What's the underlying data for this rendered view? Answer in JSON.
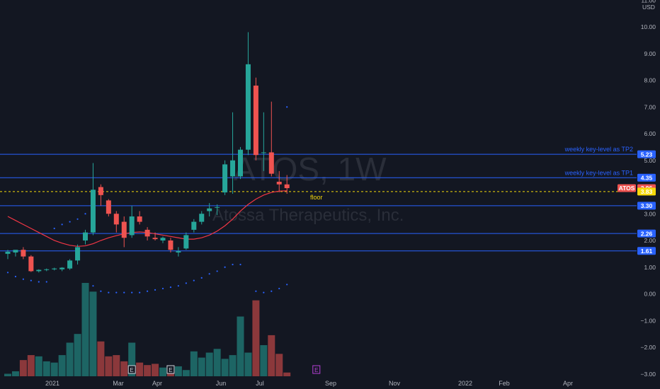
{
  "chart_data": {
    "type": "candlestick",
    "symbol": "ATOS",
    "interval": "1W",
    "company": "Atossa Therapeutics, Inc.",
    "currency": "USD",
    "price_axis": {
      "ticks": [
        "−3.00",
        "−2.00",
        "−1.00",
        "0.00",
        "1.00",
        "2.00",
        "3.00",
        "4.00",
        "5.00",
        "6.00",
        "7.00",
        "8.00",
        "9.00",
        "10.00",
        "11.00"
      ]
    },
    "time_axis": {
      "ticks": [
        "2021",
        "Mar",
        "Apr",
        "Jun",
        "Jul",
        "Sep",
        "Nov",
        "2022",
        "Feb",
        "Apr"
      ]
    },
    "candles": [
      {
        "o": 1.5,
        "h": 1.65,
        "l": 1.3,
        "c": 1.58
      },
      {
        "o": 1.55,
        "h": 1.62,
        "l": 1.4,
        "c": 1.65
      },
      {
        "o": 1.65,
        "h": 1.75,
        "l": 1.3,
        "c": 1.4
      },
      {
        "o": 1.4,
        "h": 1.45,
        "l": 0.82,
        "c": 0.85
      },
      {
        "o": 0.85,
        "h": 0.92,
        "l": 0.8,
        "c": 0.9
      },
      {
        "o": 0.9,
        "h": 0.95,
        "l": 0.85,
        "c": 0.92
      },
      {
        "o": 0.92,
        "h": 0.98,
        "l": 0.88,
        "c": 0.95
      },
      {
        "o": 0.92,
        "h": 1.0,
        "l": 0.85,
        "c": 0.98
      },
      {
        "o": 0.95,
        "h": 1.3,
        "l": 0.9,
        "c": 1.25
      },
      {
        "o": 1.25,
        "h": 1.85,
        "l": 1.1,
        "c": 1.75
      },
      {
        "o": 2.0,
        "h": 2.4,
        "l": 1.85,
        "c": 2.3
      },
      {
        "o": 2.3,
        "h": 4.9,
        "l": 2.2,
        "c": 3.9
      },
      {
        "o": 4.0,
        "h": 4.1,
        "l": 3.3,
        "c": 3.7
      },
      {
        "o": 3.5,
        "h": 3.55,
        "l": 2.9,
        "c": 3.0
      },
      {
        "o": 3.0,
        "h": 3.1,
        "l": 2.3,
        "c": 2.6
      },
      {
        "o": 2.7,
        "h": 2.9,
        "l": 1.75,
        "c": 2.1
      },
      {
        "o": 2.2,
        "h": 3.3,
        "l": 2.1,
        "c": 2.9
      },
      {
        "o": 2.9,
        "h": 3.1,
        "l": 2.6,
        "c": 2.7
      },
      {
        "o": 2.4,
        "h": 2.5,
        "l": 2.0,
        "c": 2.15
      },
      {
        "o": 2.1,
        "h": 2.3,
        "l": 2.0,
        "c": 2.05
      },
      {
        "o": 2.0,
        "h": 2.15,
        "l": 1.9,
        "c": 2.1
      },
      {
        "o": 2.0,
        "h": 2.1,
        "l": 1.55,
        "c": 1.65
      },
      {
        "o": 1.55,
        "h": 1.75,
        "l": 1.4,
        "c": 1.6
      },
      {
        "o": 1.7,
        "h": 2.3,
        "l": 1.65,
        "c": 2.2
      },
      {
        "o": 2.4,
        "h": 2.8,
        "l": 2.3,
        "c": 2.7
      },
      {
        "o": 2.7,
        "h": 3.1,
        "l": 2.6,
        "c": 3.0
      },
      {
        "o": 3.1,
        "h": 3.4,
        "l": 2.9,
        "c": 3.2
      },
      {
        "o": 3.25,
        "h": 3.35,
        "l": 2.95,
        "c": 3.25
      },
      {
        "o": 3.8,
        "h": 5.0,
        "l": 3.7,
        "c": 4.85
      },
      {
        "o": 4.4,
        "h": 6.8,
        "l": 3.75,
        "c": 5.0
      },
      {
        "o": 4.4,
        "h": 5.5,
        "l": 4.3,
        "c": 5.4
      },
      {
        "o": 5.4,
        "h": 9.8,
        "l": 5.2,
        "c": 8.6
      },
      {
        "o": 7.8,
        "h": 8.1,
        "l": 5.0,
        "c": 5.2
      },
      {
        "o": 5.3,
        "h": 6.8,
        "l": 4.6,
        "c": 5.3
      },
      {
        "o": 5.3,
        "h": 7.2,
        "l": 4.4,
        "c": 4.5
      },
      {
        "o": 4.2,
        "h": 4.6,
        "l": 3.8,
        "c": 4.1
      },
      {
        "o": 4.1,
        "h": 4.45,
        "l": 3.75,
        "c": 3.96
      }
    ],
    "volume_rel": [
      0.02,
      0.04,
      0.13,
      0.17,
      0.16,
      0.12,
      0.11,
      0.17,
      0.27,
      0.34,
      0.75,
      0.68,
      0.28,
      0.16,
      0.17,
      0.12,
      0.27,
      0.11,
      0.09,
      0.1,
      0.07,
      0.08,
      0.08,
      0.05,
      0.2,
      0.15,
      0.19,
      0.22,
      0.14,
      0.17,
      0.48,
      0.19,
      0.61,
      0.25,
      0.33,
      0.18,
      0.03
    ],
    "ma_line": [
      2.9,
      2.75,
      2.6,
      2.45,
      2.3,
      2.15,
      2.0,
      1.9,
      1.82,
      1.78,
      1.8,
      1.88,
      2.0,
      2.1,
      2.18,
      2.25,
      2.3,
      2.32,
      2.3,
      2.25,
      2.2,
      2.15,
      2.1,
      2.05,
      2.05,
      2.1,
      2.2,
      2.35,
      2.55,
      2.8,
      3.1,
      3.35,
      3.55,
      3.7,
      3.8,
      3.85,
      3.86
    ],
    "psar_dots": [
      {
        "i": 0,
        "v": 0.8
      },
      {
        "i": 1,
        "v": 0.65
      },
      {
        "i": 2,
        "v": 0.55
      },
      {
        "i": 3,
        "v": 0.5
      },
      {
        "i": 4,
        "v": 0.45
      },
      {
        "i": 5,
        "v": 0.45
      },
      {
        "i": 6,
        "v": 2.45
      },
      {
        "i": 7,
        "v": 2.6
      },
      {
        "i": 8,
        "v": 2.7
      },
      {
        "i": 9,
        "v": 2.8
      },
      {
        "i": 10,
        "v": 3.0
      },
      {
        "i": 11,
        "v": 0.3
      },
      {
        "i": 12,
        "v": 0.1
      },
      {
        "i": 13,
        "v": 0.05
      },
      {
        "i": 14,
        "v": 0.05
      },
      {
        "i": 15,
        "v": 0.05
      },
      {
        "i": 16,
        "v": 0.05
      },
      {
        "i": 17,
        "v": 0.05
      },
      {
        "i": 18,
        "v": 0.1
      },
      {
        "i": 19,
        "v": 0.15
      },
      {
        "i": 20,
        "v": 0.2
      },
      {
        "i": 21,
        "v": 0.25
      },
      {
        "i": 22,
        "v": 0.3
      },
      {
        "i": 23,
        "v": 0.4
      },
      {
        "i": 24,
        "v": 0.5
      },
      {
        "i": 25,
        "v": 0.6
      },
      {
        "i": 26,
        "v": 0.75
      },
      {
        "i": 27,
        "v": 0.85
      },
      {
        "i": 28,
        "v": 1.0
      },
      {
        "i": 29,
        "v": 1.1
      },
      {
        "i": 30,
        "v": 1.1
      },
      {
        "i": 32,
        "v": 0.1
      },
      {
        "i": 33,
        "v": 0.05
      },
      {
        "i": 34,
        "v": 0.1
      },
      {
        "i": 35,
        "v": 0.2
      },
      {
        "i": 36,
        "v": 0.35
      },
      {
        "i": 36,
        "v": 7.0
      }
    ],
    "levels": [
      {
        "value": 5.23,
        "label": "5.23",
        "text": "weekly key-level as TP2"
      },
      {
        "value": 4.35,
        "label": "4.35",
        "text": "weekly key-level as TP1"
      },
      {
        "value": 3.3,
        "label": "3.30",
        "text": ""
      },
      {
        "value": 2.26,
        "label": "2.26",
        "text": ""
      },
      {
        "value": 1.61,
        "label": "1.61",
        "text": ""
      }
    ],
    "floor": {
      "value": 3.83,
      "label": "3.83",
      "text": "floor"
    },
    "last_price": {
      "value": 3.96,
      "label": "3.96",
      "symbol": "ATOS"
    },
    "earnings_markers": [
      {
        "i": 16,
        "label": "E"
      },
      {
        "i": 21,
        "label": "E"
      },
      {
        "i": 34.5,
        "label": "E"
      }
    ],
    "colors": {
      "up": "#26a69a",
      "down": "#ef5350",
      "level": "#2962ff",
      "floor": "#f5d90a",
      "ma": "#f23645",
      "dots": "#2962ff"
    }
  }
}
